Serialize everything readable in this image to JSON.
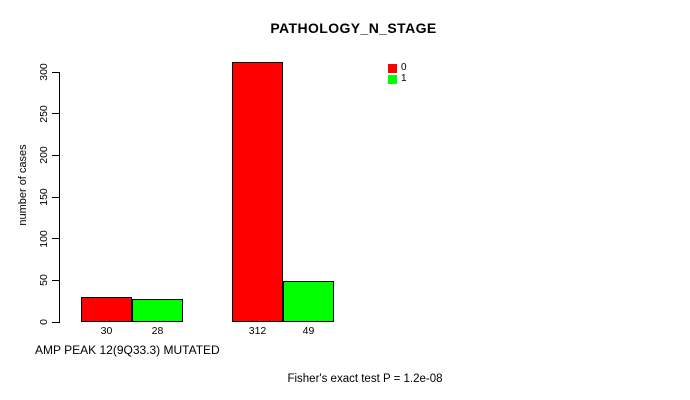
{
  "figure": {
    "title": "PATHOLOGY_N_STAGE",
    "y_axis_label": "number of cases",
    "x_axis_label": "AMP PEAK 12(9Q33.3) MUTATED",
    "footer_annotation": "Fisher's exact test P = 1.2e-08"
  },
  "colors": {
    "series_0": "#FF0000",
    "series_1": "#00FF00",
    "axis": "#000000",
    "background": "#FFFFFF"
  },
  "chart_data": {
    "type": "bar",
    "title": "PATHOLOGY_N_STAGE",
    "xlabel": "AMP PEAK 12(9Q33.3) MUTATED",
    "ylabel": "number of cases",
    "groups": 2,
    "series": [
      {
        "name": "0",
        "color": "#FF0000",
        "values": [
          30,
          312
        ]
      },
      {
        "name": "1",
        "color": "#00FF00",
        "values": [
          28,
          49
        ]
      }
    ],
    "bar_value_labels": [
      "30",
      "28",
      "312",
      "49"
    ],
    "yticks": [
      0,
      50,
      100,
      150,
      200,
      250,
      300
    ],
    "ylim": [
      0,
      320
    ],
    "grid": false,
    "legend_position": "top-right",
    "legend_entries": [
      "0",
      "1"
    ],
    "annotation": "Fisher's exact test P = 1.2e-08"
  }
}
